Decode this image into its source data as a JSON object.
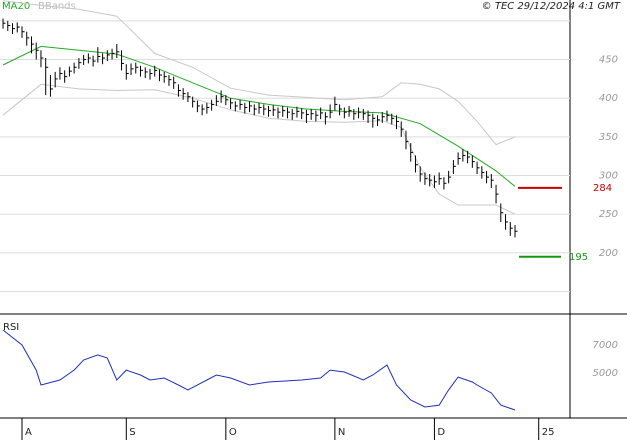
{
  "chart_data": [
    {
      "type": "ohlc",
      "source": "© TEC 29/12/2024 4:1 GMT",
      "xlim": [
        -4.64,
        115.6
      ],
      "ylim": [
        121,
        527
      ],
      "xticks": [
        {
          "value": 0,
          "label": "A"
        },
        {
          "value": 22,
          "label": "S"
        },
        {
          "value": 43,
          "label": "O"
        },
        {
          "value": 66,
          "label": "N"
        },
        {
          "value": 87,
          "label": "D"
        },
        {
          "value": 109,
          "label": "25"
        }
      ],
      "yticks": [
        {
          "value": 150,
          "label": null
        },
        200,
        250,
        300,
        350,
        400,
        450,
        {
          "value": 500,
          "label": null
        }
      ],
      "grid": true,
      "color": "#000000",
      "x": [
        -4,
        -3,
        -2,
        -1,
        0,
        1,
        2,
        3,
        4,
        5,
        6,
        7,
        8,
        9,
        10,
        11,
        12,
        13,
        14,
        15,
        16,
        17,
        18,
        19,
        20,
        21,
        22,
        23,
        24,
        25,
        26,
        27,
        28,
        29,
        30,
        31,
        32,
        33,
        34,
        35,
        36,
        37,
        38,
        39,
        40,
        41,
        42,
        43,
        44,
        45,
        46,
        47,
        48,
        49,
        50,
        51,
        52,
        53,
        54,
        55,
        56,
        57,
        58,
        59,
        60,
        61,
        62,
        63,
        64,
        65,
        66,
        67,
        68,
        69,
        70,
        71,
        72,
        73,
        74,
        75,
        76,
        77,
        78,
        79,
        80,
        81,
        82,
        83,
        84,
        85,
        86,
        87,
        88,
        89,
        90,
        91,
        92,
        93,
        94,
        95,
        96,
        97,
        98,
        99,
        100,
        101,
        102,
        103,
        104
      ],
      "high": [
        503,
        500,
        497,
        498,
        493,
        486,
        480,
        472,
        462,
        452,
        430,
        434,
        440,
        436,
        441,
        446,
        452,
        456,
        458,
        455,
        466,
        458,
        462,
        464,
        470,
        462,
        444,
        445,
        446,
        442,
        440,
        438,
        442,
        437,
        434,
        430,
        428,
        418,
        413,
        408,
        402,
        397,
        392,
        394,
        398,
        404,
        410,
        404,
        400,
        396,
        398,
        394,
        396,
        392,
        394,
        392,
        390,
        391,
        388,
        390,
        388,
        386,
        389,
        387,
        385,
        386,
        384,
        388,
        382,
        392,
        402,
        392,
        388,
        390,
        386,
        388,
        386,
        384,
        380,
        378,
        382,
        384,
        380,
        378,
        370,
        358,
        342,
        326,
        312,
        304,
        302,
        300,
        304,
        298,
        306,
        320,
        330,
        334,
        332,
        326,
        318,
        312,
        306,
        302,
        288,
        264,
        250,
        240,
        236
      ],
      "low": [
        490,
        487,
        483,
        485,
        478,
        468,
        458,
        450,
        440,
        404,
        402,
        414,
        424,
        420,
        428,
        432,
        438,
        443,
        445,
        441,
        446,
        444,
        448,
        450,
        452,
        436,
        424,
        430,
        432,
        428,
        426,
        424,
        428,
        422,
        420,
        416,
        412,
        402,
        398,
        395,
        388,
        382,
        378,
        380,
        384,
        390,
        394,
        391,
        386,
        383,
        385,
        380,
        382,
        378,
        380,
        378,
        376,
        377,
        374,
        376,
        374,
        372,
        375,
        373,
        368,
        372,
        370,
        373,
        366,
        374,
        384,
        378,
        374,
        376,
        372,
        374,
        372,
        368,
        362,
        364,
        368,
        370,
        366,
        360,
        350,
        334,
        318,
        304,
        292,
        288,
        286,
        284,
        288,
        282,
        290,
        302,
        314,
        318,
        316,
        310,
        302,
        296,
        290,
        284,
        264,
        240,
        230,
        222,
        220
      ],
      "close": [
        497,
        494,
        490,
        492,
        486,
        478,
        470,
        462,
        452,
        440,
        412,
        425,
        432,
        428,
        435,
        440,
        446,
        450,
        452,
        448,
        454,
        452,
        456,
        458,
        460,
        445,
        432,
        438,
        440,
        436,
        434,
        432,
        436,
        430,
        428,
        424,
        420,
        410,
        406,
        402,
        396,
        390,
        386,
        388,
        392,
        396,
        402,
        398,
        394,
        390,
        392,
        388,
        390,
        386,
        388,
        386,
        384,
        385,
        382,
        384,
        382,
        380,
        383,
        381,
        379,
        380,
        378,
        381,
        376,
        382,
        392,
        386,
        382,
        384,
        380,
        382,
        380,
        378,
        374,
        372,
        376,
        378,
        374,
        370,
        360,
        344,
        330,
        314,
        302,
        296,
        294,
        292,
        296,
        290,
        298,
        312,
        322,
        326,
        324,
        318,
        310,
        304,
        298,
        294,
        276,
        252,
        240,
        232,
        228
      ],
      "series": [
        {
          "name": "MA20",
          "color": "#22aa22",
          "x": [
            -4,
            4,
            12,
            20,
            28,
            36,
            44,
            52,
            60,
            68,
            76,
            84,
            92,
            100,
            104
          ],
          "values": [
            443,
            467,
            462,
            457,
            440,
            420,
            400,
            392,
            386,
            383,
            381,
            367,
            338,
            306,
            286
          ]
        },
        {
          "name": "BBands",
          "color": "#c8c8c8",
          "x": [
            -4,
            4,
            12,
            20,
            28,
            36,
            44,
            52,
            60,
            68,
            76,
            80,
            84,
            88,
            92,
            96,
            100,
            104
          ],
          "upper": [
            526,
            520,
            515,
            506,
            458,
            440,
            413,
            404,
            401,
            398,
            402,
            420,
            418,
            412,
            396,
            370,
            340,
            350
          ],
          "lower": [
            378,
            418,
            412,
            410,
            411,
            400,
            385,
            374,
            370,
            369,
            371,
            362,
            310,
            276,
            262,
            262,
            262,
            250
          ]
        }
      ],
      "levels": [
        {
          "value": 284,
          "color": "#cc0000"
        },
        {
          "value": 195,
          "color": "#119911"
        }
      ]
    },
    {
      "type": "line",
      "title": "RSI",
      "color": "#1f2fbf",
      "ylim": [
        1786,
        9143
      ],
      "yticks": [
        7000,
        5000
      ],
      "x": [
        -4,
        0,
        3,
        4,
        8,
        11,
        13,
        16,
        18,
        20,
        22,
        25,
        27,
        30,
        33,
        35,
        39,
        41,
        44,
        48,
        52,
        59,
        63,
        65,
        68,
        72,
        74,
        77,
        79,
        82,
        85,
        88,
        90,
        92,
        95,
        96,
        99,
        101,
        104
      ],
      "values": [
        8070,
        7000,
        5210,
        4140,
        4500,
        5210,
        5930,
        6290,
        6070,
        4500,
        5210,
        4860,
        4500,
        4640,
        4140,
        3790,
        4500,
        4860,
        4640,
        4140,
        4360,
        4500,
        4640,
        5210,
        5070,
        4500,
        4860,
        5570,
        4140,
        3070,
        2570,
        2710,
        3790,
        4710,
        4360,
        4140,
        3570,
        2710,
        2360
      ]
    }
  ]
}
